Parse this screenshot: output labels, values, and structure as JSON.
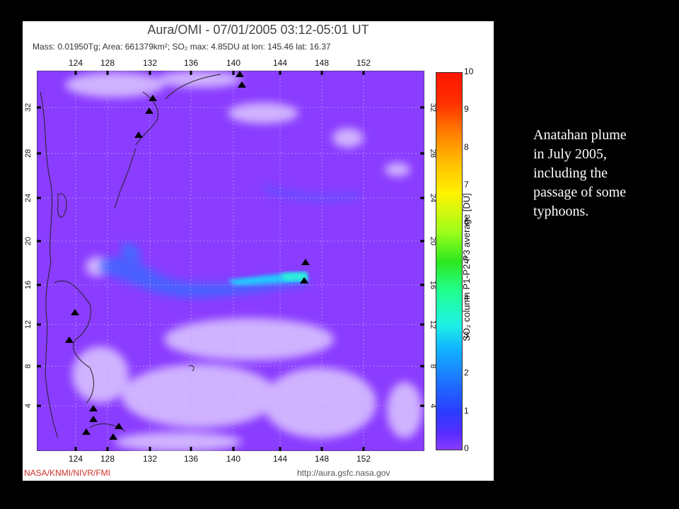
{
  "figure": {
    "title": "Aura/OMI - 07/01/2005 03:12-05:01 UT",
    "stats": "Mass: 0.01950Tg; Area: 661379km²; SO₂ max: 4.85DU at lon: 145.46 lat: 16.37",
    "credit_left": "NASA/KNMI/NIVR/FMI",
    "credit_right": "http://aura.gsfc.nasa.gov"
  },
  "map": {
    "lon_ticks": [
      "124",
      "128",
      "132",
      "136",
      "140",
      "144",
      "148",
      "152"
    ],
    "lat_ticks": [
      "32",
      "28",
      "24",
      "20",
      "16",
      "12",
      "8",
      "4"
    ],
    "plume_max": {
      "lon": 145.46,
      "lat": 16.37,
      "value_du": 4.85
    }
  },
  "colorbar": {
    "ticks": [
      "10",
      "9",
      "8",
      "7",
      "6",
      "5",
      "4",
      "3",
      "2",
      "1",
      "0"
    ],
    "label": "SO₂ column P1-P2-P3 average [DU]",
    "range": [
      0,
      10
    ]
  },
  "caption": {
    "lines": [
      "Anatahan plume",
      "in July 2005,",
      "including the",
      "passage of some",
      "typhoons."
    ]
  }
}
